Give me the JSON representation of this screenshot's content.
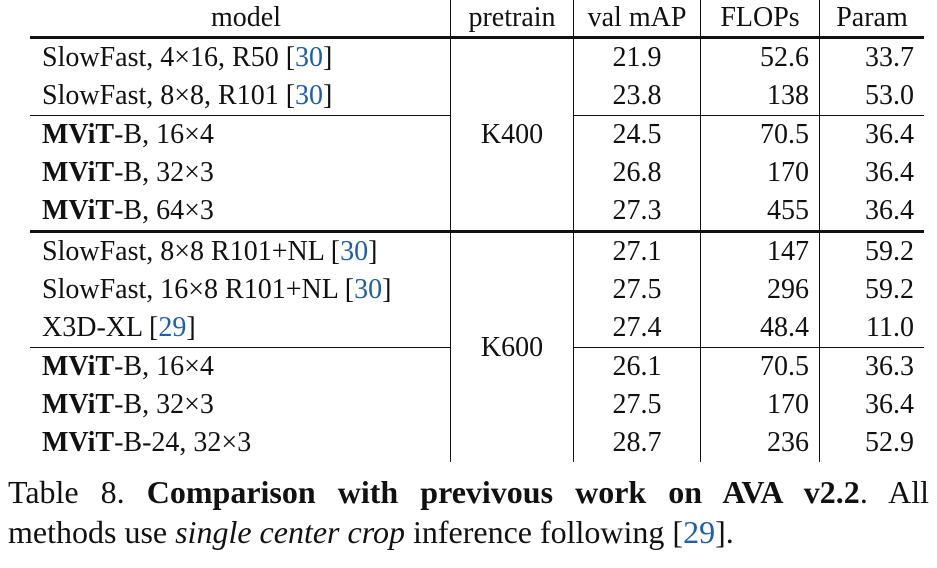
{
  "table": {
    "headers": {
      "model": "model",
      "pretrain": "pretrain",
      "val_map": "val mAP",
      "flops": "FLOPs",
      "param": "Param"
    },
    "groups": [
      {
        "pretrain": "K400",
        "rows": [
          {
            "bold": "",
            "model": "SlowFast, 4×16, R50 [",
            "cite": "30",
            "after": "]",
            "val_map": "21.9",
            "flops": "52.6",
            "param": "33.7"
          },
          {
            "bold": "",
            "model": "SlowFast, 8×8, R101 [",
            "cite": "30",
            "after": "]",
            "val_map": "23.8",
            "flops": "138",
            "param": "53.0"
          },
          {
            "bold": "MViT",
            "model": "-B, 16×4",
            "cite": "",
            "after": "",
            "val_map": "24.5",
            "flops": "70.5",
            "param": "36.4"
          },
          {
            "bold": "MViT",
            "model": "-B, 32×3",
            "cite": "",
            "after": "",
            "val_map": "26.8",
            "flops": "170",
            "param": "36.4"
          },
          {
            "bold": "MViT",
            "model": "-B, 64×3",
            "cite": "",
            "after": "",
            "val_map": "27.3",
            "flops": "455",
            "param": "36.4"
          }
        ]
      },
      {
        "pretrain": "K600",
        "rows": [
          {
            "bold": "",
            "model": "SlowFast, 8×8 R101+NL [",
            "cite": "30",
            "after": "]",
            "val_map": "27.1",
            "flops": "147",
            "param": "59.2"
          },
          {
            "bold": "",
            "model": "SlowFast, 16×8 R101+NL [",
            "cite": "30",
            "after": "]",
            "val_map": "27.5",
            "flops": "296",
            "param": "59.2"
          },
          {
            "bold": "",
            "model": "X3D-XL [",
            "cite": "29",
            "after": "]",
            "val_map": "27.4",
            "flops": "48.4",
            "param": "11.0"
          },
          {
            "bold": "MViT",
            "model": "-B, 16×4",
            "cite": "",
            "after": "",
            "val_map": "26.1",
            "flops": "70.5",
            "param": "36.3"
          },
          {
            "bold": "MViT",
            "model": "-B, 32×3",
            "cite": "",
            "after": "",
            "val_map": "27.5",
            "flops": "170",
            "param": "36.4"
          },
          {
            "bold": "MViT",
            "model": "-B-24, 32×3",
            "cite": "",
            "after": "",
            "val_map": "28.7",
            "flops": "236",
            "param": "52.9"
          }
        ]
      }
    ],
    "best_map": [
      "27.3",
      "28.7"
    ]
  },
  "caption": {
    "label": "Table 8.",
    "title": "Comparison with previvous work on AVA v2.2",
    "line1_tail": ".  All",
    "line2_a": "methods use ",
    "line2_italic": "single center crop",
    "line2_b": " inference following [",
    "cite": "29",
    "line2_c": "]."
  }
}
